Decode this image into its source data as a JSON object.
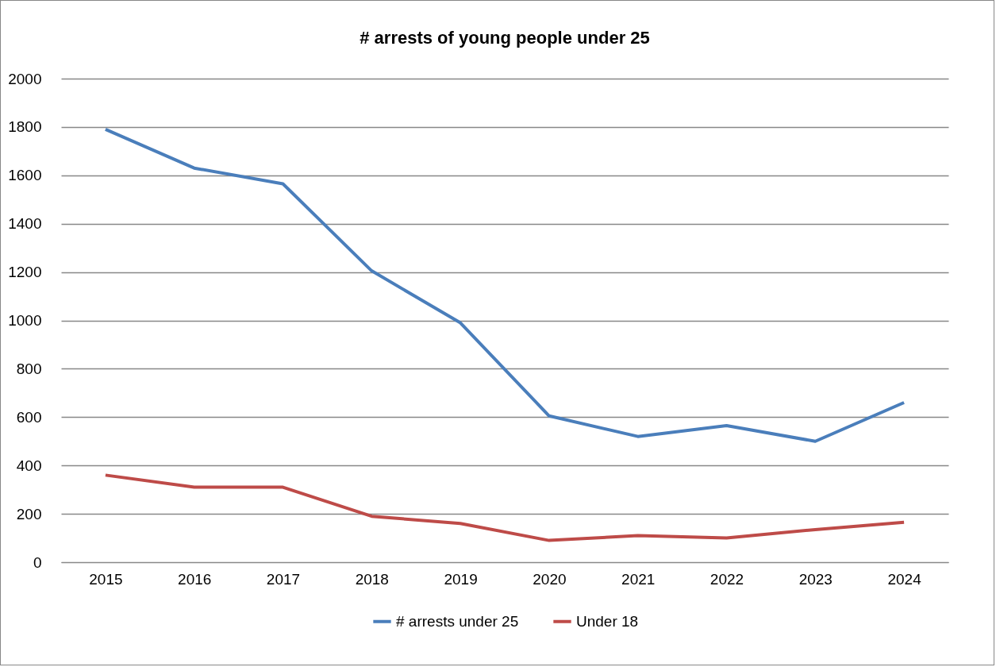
{
  "chart_data": {
    "type": "line",
    "title": "# arrests of young people under 25",
    "categories": [
      "2015",
      "2016",
      "2017",
      "2018",
      "2019",
      "2020",
      "2021",
      "2022",
      "2023",
      "2024"
    ],
    "series": [
      {
        "name": "# arrests  under 25",
        "color": "#4a7ebb",
        "values": [
          1790,
          1630,
          1565,
          1205,
          990,
          605,
          520,
          565,
          500,
          660
        ]
      },
      {
        "name": "Under 18",
        "color": "#be4b48",
        "values": [
          360,
          310,
          310,
          190,
          160,
          90,
          110,
          100,
          135,
          165
        ]
      }
    ],
    "ylim": [
      0,
      2000
    ],
    "yticks": [
      0,
      200,
      400,
      600,
      800,
      1000,
      1200,
      1400,
      1600,
      1800,
      2000
    ],
    "grid": "y",
    "legend": "bottom"
  }
}
